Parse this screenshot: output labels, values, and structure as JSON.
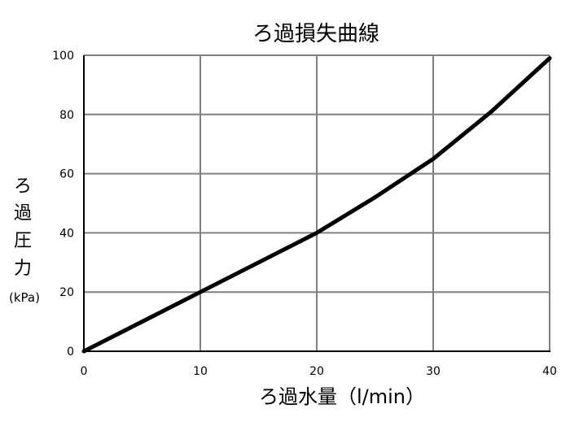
{
  "chart_data": {
    "type": "line",
    "title": "ろ過損失曲線",
    "xlabel": "ろ過水量（l/min）",
    "ylabel_chars": [
      "ろ",
      "過",
      "圧",
      "力"
    ],
    "ylabel_unit": "(kPa)",
    "xlim": [
      0,
      40
    ],
    "ylim": [
      0,
      100
    ],
    "xticks": [
      0,
      10,
      20,
      30,
      40
    ],
    "yticks": [
      0,
      20,
      40,
      60,
      80,
      100
    ],
    "grid": true,
    "series": [
      {
        "x": [
          0,
          5,
          10,
          15,
          20,
          25,
          30,
          35,
          40
        ],
        "y": [
          0,
          10,
          20,
          30,
          40,
          52,
          65,
          81,
          99
        ]
      }
    ],
    "colors": {
      "line": "#000000",
      "grid": "#808080",
      "axis": "#000000"
    }
  }
}
